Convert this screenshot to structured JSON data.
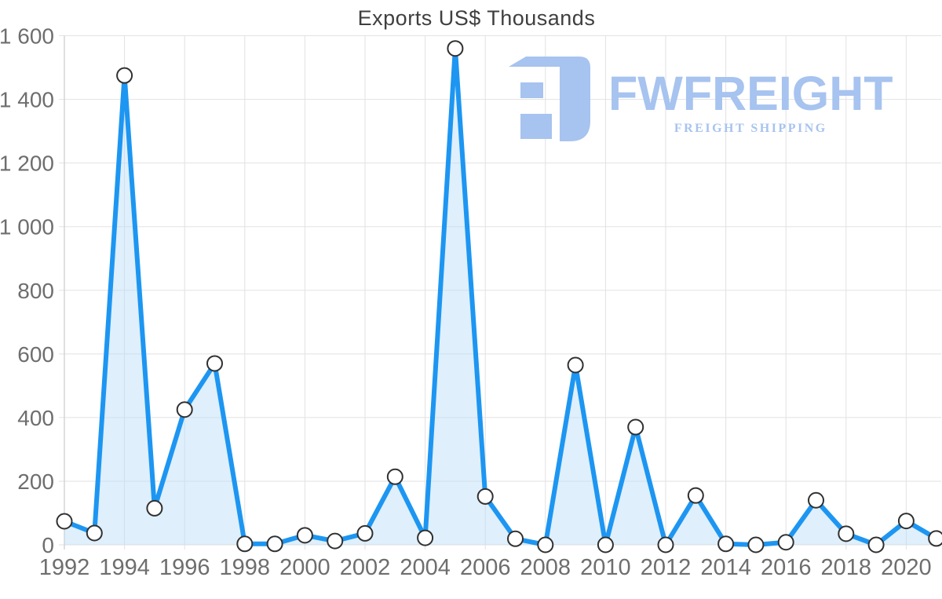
{
  "logo": {
    "name": "FWFREIGHT",
    "tagline": "FREIGHT SHIPPING",
    "color": "#a7c3ef",
    "icon": "fwfreight-mark-icon"
  },
  "chart_data": {
    "type": "line",
    "title": "Exports US$ Thousands",
    "xlabel": "",
    "ylabel": "",
    "x": [
      1992,
      1993,
      1994,
      1995,
      1996,
      1997,
      1998,
      1999,
      2000,
      2001,
      2002,
      2003,
      2004,
      2005,
      2006,
      2007,
      2008,
      2009,
      2010,
      2011,
      2012,
      2013,
      2014,
      2015,
      2016,
      2017,
      2018,
      2019,
      2020,
      2021
    ],
    "values": [
      74,
      37,
      1475,
      115,
      425,
      570,
      3,
      3,
      30,
      12,
      36,
      214,
      22,
      1560,
      152,
      19,
      0,
      565,
      0,
      370,
      0,
      155,
      3,
      0,
      8,
      140,
      35,
      0,
      75,
      20
    ],
    "series_name": "Exports US$ Thousands",
    "ylim": [
      0,
      1600
    ],
    "y_ticks": [
      0,
      200,
      400,
      600,
      800,
      1000,
      1200,
      1400,
      1600
    ],
    "y_tick_labels": [
      "0",
      "200",
      "400",
      "600",
      "800",
      "1 000",
      "1 200",
      "1 400",
      "1 600"
    ],
    "x_ticks": [
      1992,
      1994,
      1996,
      1998,
      2000,
      2002,
      2004,
      2006,
      2008,
      2010,
      2012,
      2014,
      2016,
      2018,
      2020
    ],
    "x_tick_labels": [
      "1992",
      "1994",
      "1996",
      "1998",
      "2000",
      "2002",
      "2004",
      "2006",
      "2008",
      "2010",
      "2012",
      "2014",
      "2016",
      "2018",
      "2020"
    ],
    "grid": true,
    "legend": false,
    "marker": "circle",
    "area_fill": true,
    "style": {
      "line": "#1d96f2",
      "fill": "#b9dcf6",
      "fill_opacity": 0.45,
      "marker_fill": "#ffffff",
      "marker_stroke": "#303030",
      "grid": "#e2e2e2",
      "axis": "#cccccc",
      "tick_label": "#6e6e6e",
      "title_color": "#3f3f3f"
    }
  }
}
